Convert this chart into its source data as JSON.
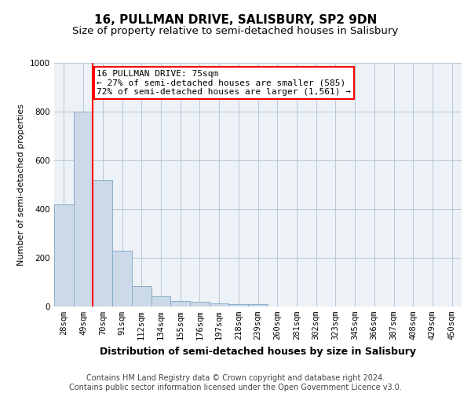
{
  "title": "16, PULLMAN DRIVE, SALISBURY, SP2 9DN",
  "subtitle": "Size of property relative to semi-detached houses in Salisbury",
  "xlabel": "Distribution of semi-detached houses by size in Salisbury",
  "ylabel": "Number of semi-detached properties",
  "footer_line1": "Contains HM Land Registry data © Crown copyright and database right 2024.",
  "footer_line2": "Contains public sector information licensed under the Open Government Licence v3.0.",
  "categories": [
    "28sqm",
    "49sqm",
    "70sqm",
    "91sqm",
    "112sqm",
    "134sqm",
    "155sqm",
    "176sqm",
    "197sqm",
    "218sqm",
    "239sqm",
    "260sqm",
    "281sqm",
    "302sqm",
    "323sqm",
    "345sqm",
    "366sqm",
    "387sqm",
    "408sqm",
    "429sqm",
    "450sqm"
  ],
  "values": [
    420,
    800,
    520,
    230,
    85,
    42,
    22,
    20,
    13,
    11,
    11,
    0,
    0,
    0,
    0,
    0,
    0,
    0,
    0,
    0,
    0
  ],
  "bar_color": "#ccd9e8",
  "bar_edge_color": "#8aaec8",
  "property_line_x": 1.5,
  "annotation_text": "16 PULLMAN DRIVE: 75sqm\n← 27% of semi-detached houses are smaller (585)\n72% of semi-detached houses are larger (1,561) →",
  "annotation_box_color": "white",
  "annotation_box_edge_color": "red",
  "line_color": "red",
  "ylim": [
    0,
    1000
  ],
  "grid_color": "#b8c8d8",
  "background_color": "#edf2f7",
  "title_fontsize": 11,
  "subtitle_fontsize": 9.5,
  "ylabel_fontsize": 8,
  "xlabel_fontsize": 9,
  "tick_fontsize": 7.5,
  "footer_fontsize": 7,
  "annotation_fontsize": 8
}
